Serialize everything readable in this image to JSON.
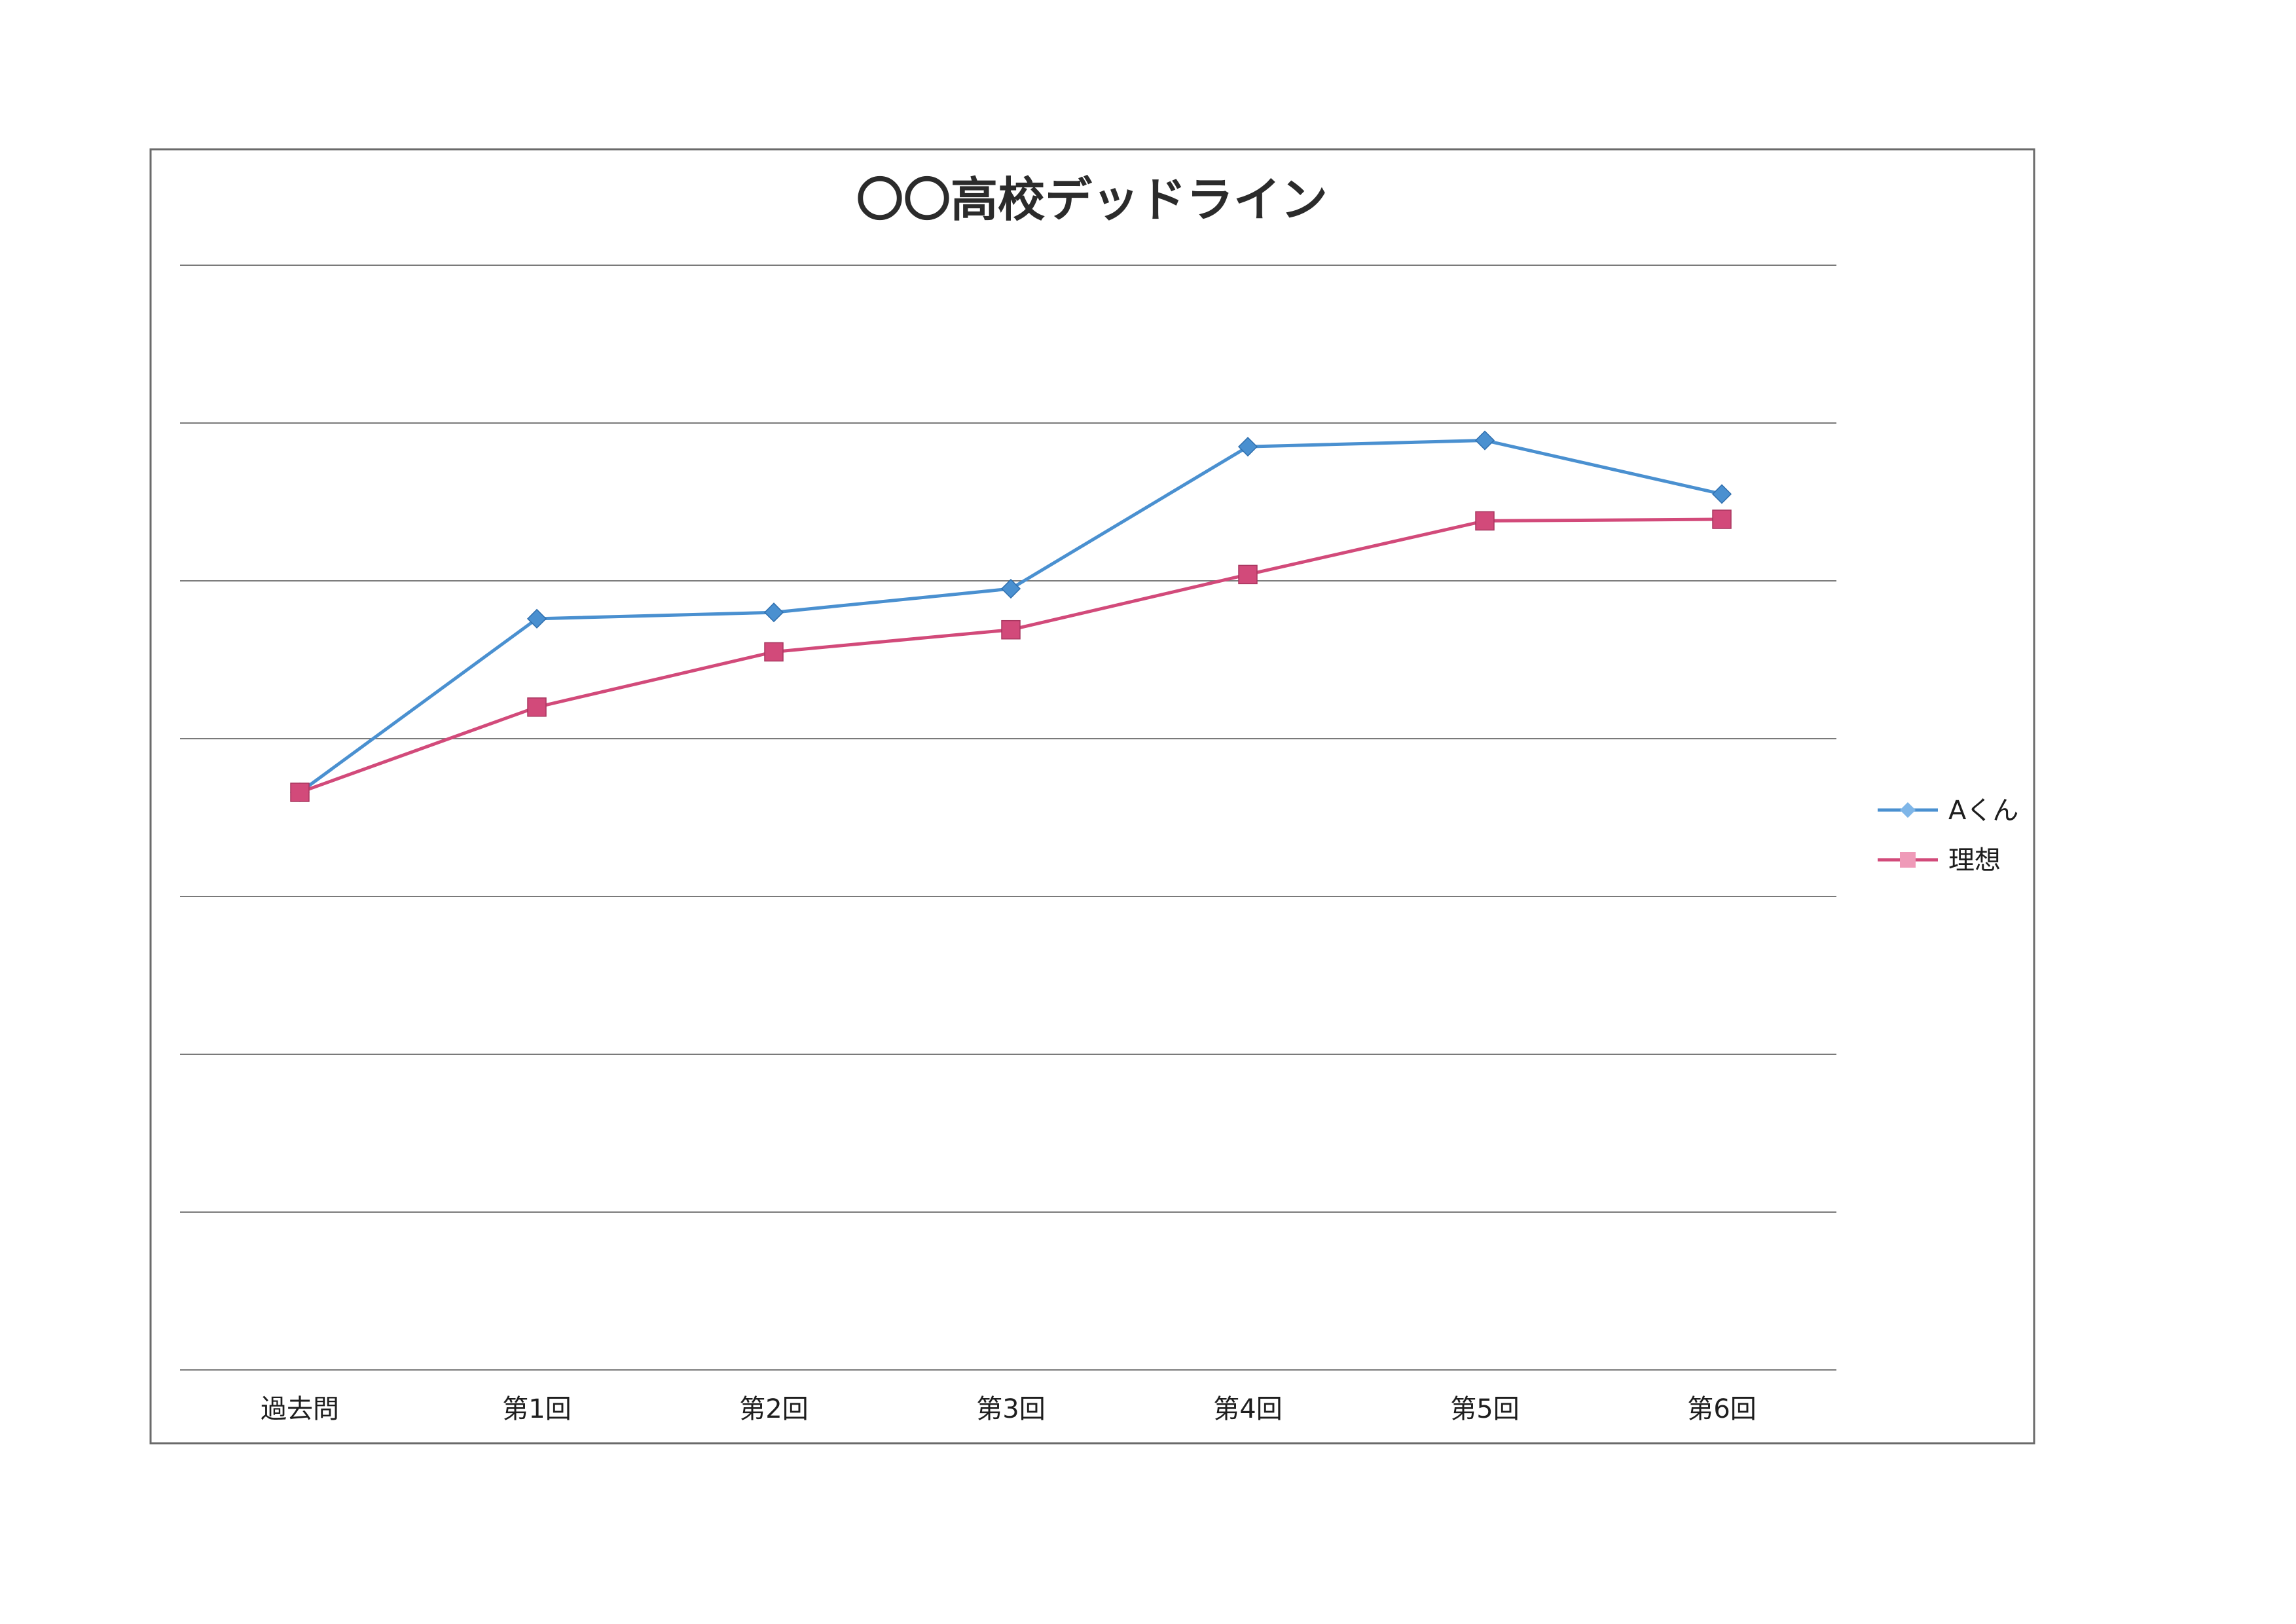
{
  "chart_data": {
    "type": "line",
    "title": "〇〇高校デッドライン",
    "categories": [
      "過去問",
      "第1回",
      "第2回",
      "第3回",
      "第4回",
      "第5回",
      "第6回"
    ],
    "series": [
      {
        "name": "Aくん",
        "color": "#4a90d0",
        "marker": "diamond",
        "values": [
          3.66,
          4.76,
          4.8,
          4.95,
          5.85,
          5.89,
          5.55
        ]
      },
      {
        "name": "理想",
        "color": "#d24a7a",
        "marker": "square",
        "values": [
          3.66,
          4.2,
          4.55,
          4.69,
          5.04,
          5.38,
          5.39
        ]
      }
    ],
    "ylim": [
      0,
      7
    ],
    "y_tick_count": 8,
    "show_y_tick_labels": false,
    "grid": true,
    "legend_position": "right"
  }
}
